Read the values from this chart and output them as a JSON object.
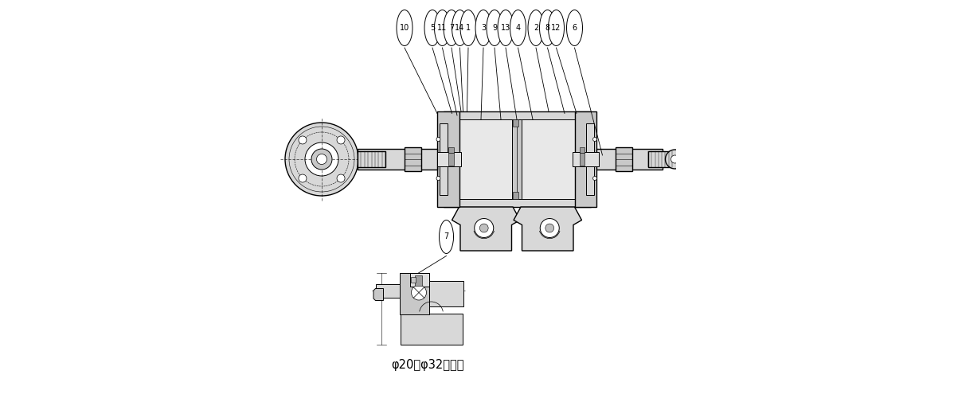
{
  "bg_color": "#ffffff",
  "line_color": "#000000",
  "gray_fill": "#c8c8c8",
  "light_gray": "#d8d8d8",
  "dark_gray": "#a0a0a0",
  "medium_gray": "#b8b8b8",
  "figsize": [
    11.98,
    5.0
  ],
  "dpi": 100,
  "labels_data": [
    [
      10,
      0.318,
      0.93,
      0.4,
      0.715
    ],
    [
      5,
      0.388,
      0.93,
      0.437,
      0.715
    ],
    [
      11,
      0.413,
      0.93,
      0.45,
      0.71
    ],
    [
      7,
      0.436,
      0.93,
      0.46,
      0.72
    ],
    [
      14,
      0.457,
      0.93,
      0.465,
      0.72
    ],
    [
      1,
      0.478,
      0.93,
      0.475,
      0.72
    ],
    [
      3,
      0.516,
      0.93,
      0.51,
      0.7
    ],
    [
      9,
      0.544,
      0.93,
      0.56,
      0.7
    ],
    [
      13,
      0.572,
      0.93,
      0.6,
      0.7
    ],
    [
      4,
      0.603,
      0.93,
      0.64,
      0.7
    ],
    [
      2,
      0.648,
      0.93,
      0.68,
      0.72
    ],
    [
      8,
      0.677,
      0.93,
      0.72,
      0.715
    ],
    [
      12,
      0.699,
      0.93,
      0.75,
      0.715
    ],
    [
      6,
      0.745,
      0.93,
      0.815,
      0.61
    ]
  ],
  "caption": "φ20～φ32の場合"
}
